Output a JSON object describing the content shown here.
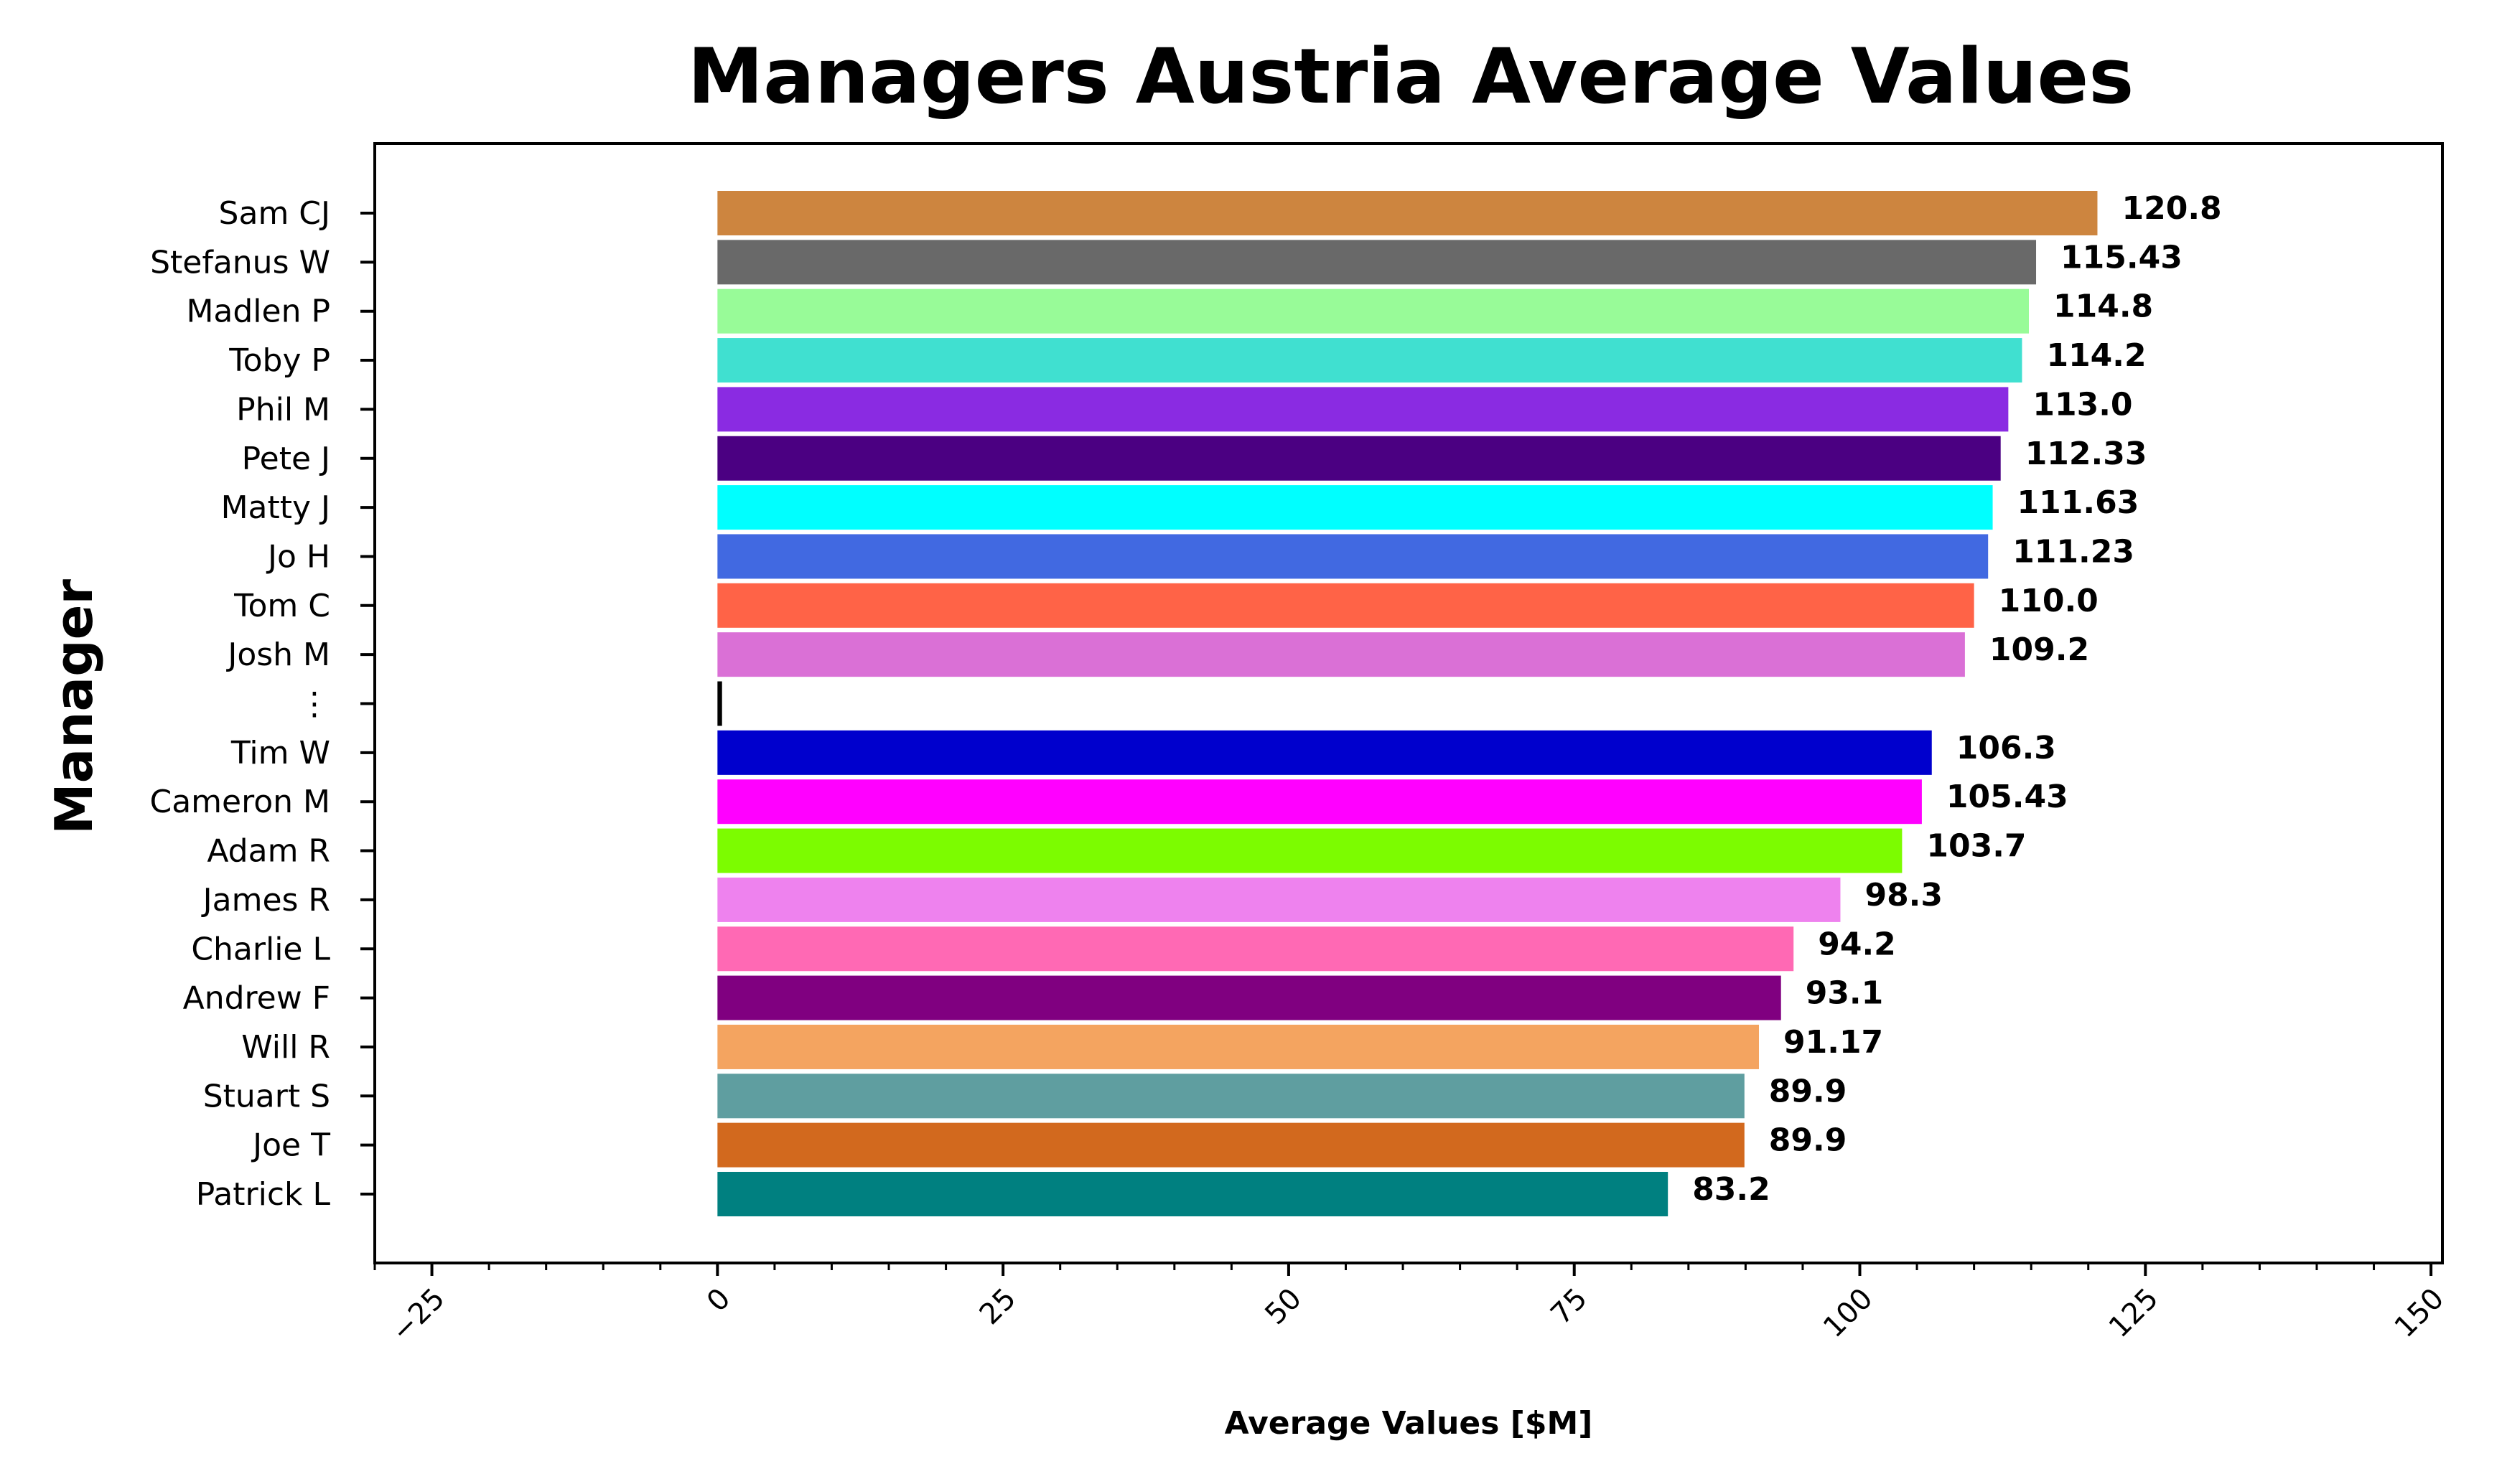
{
  "chart_data": {
    "type": "bar",
    "orientation": "horizontal",
    "title": "Managers Austria Average Values",
    "xlabel": "Average Values [$M]",
    "ylabel": "Manager",
    "xlim": [
      -30,
      151
    ],
    "xticks": [
      -25,
      0,
      25,
      50,
      75,
      100,
      125,
      150
    ],
    "xtick_labels": [
      "−25",
      "0",
      "25",
      "50",
      "75",
      "100",
      "125",
      "150"
    ],
    "grid": false,
    "legend": "none",
    "bars": [
      {
        "label": "Sam CJ",
        "value": 120.8,
        "value_label": "120.8",
        "color": "#CD853F"
      },
      {
        "label": "Stefanus W",
        "value": 115.43,
        "value_label": "115.43",
        "color": "#696969"
      },
      {
        "label": "Madlen P",
        "value": 114.8,
        "value_label": "114.8",
        "color": "#98FB98"
      },
      {
        "label": "Toby P",
        "value": 114.2,
        "value_label": "114.2",
        "color": "#40E0D0"
      },
      {
        "label": "Phil M",
        "value": 113.0,
        "value_label": "113.0",
        "color": "#8A2BE2"
      },
      {
        "label": "Pete J",
        "value": 112.33,
        "value_label": "112.33",
        "color": "#4B0082"
      },
      {
        "label": "Matty J",
        "value": 111.63,
        "value_label": "111.63",
        "color": "#00FFFF"
      },
      {
        "label": "Jo H",
        "value": 111.23,
        "value_label": "111.23",
        "color": "#4169E1"
      },
      {
        "label": "Tom C",
        "value": 110.0,
        "value_label": "110.0",
        "color": "#FF6347"
      },
      {
        "label": "Josh M",
        "value": 109.2,
        "value_label": "109.2",
        "color": "#DA70D6"
      },
      {
        "label": "⋮",
        "value": 0.4,
        "value_label": "",
        "color": "#000000"
      },
      {
        "label": "Tim W",
        "value": 106.3,
        "value_label": "106.3",
        "color": "#0000CD"
      },
      {
        "label": "Cameron M",
        "value": 105.43,
        "value_label": "105.43",
        "color": "#FF00FF"
      },
      {
        "label": "Adam R",
        "value": 103.7,
        "value_label": "103.7",
        "color": "#7CFC00"
      },
      {
        "label": "James R",
        "value": 98.3,
        "value_label": "98.3",
        "color": "#EE82EE"
      },
      {
        "label": "Charlie L",
        "value": 94.2,
        "value_label": "94.2",
        "color": "#FF69B4"
      },
      {
        "label": "Andrew F",
        "value": 93.1,
        "value_label": "93.1",
        "color": "#800080"
      },
      {
        "label": "Will R",
        "value": 91.17,
        "value_label": "91.17",
        "color": "#F4A460"
      },
      {
        "label": "Stuart S",
        "value": 89.9,
        "value_label": "89.9",
        "color": "#5F9EA0"
      },
      {
        "label": "Joe T",
        "value": 89.9,
        "value_label": "89.9",
        "color": "#D2691E"
      },
      {
        "label": "Patrick L",
        "value": 83.2,
        "value_label": "83.2",
        "color": "#008080"
      }
    ]
  }
}
